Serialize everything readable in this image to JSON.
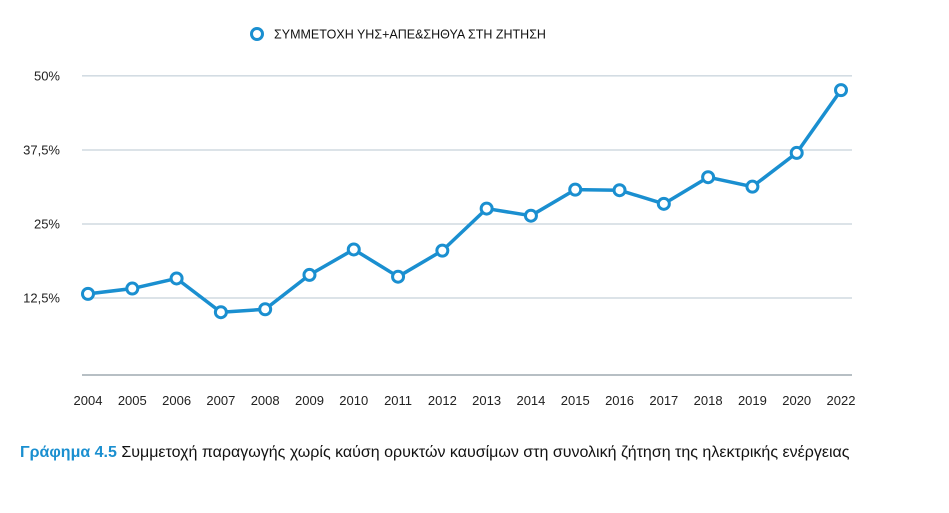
{
  "chart_data": {
    "type": "line",
    "categories": [
      "2004",
      "2005",
      "2006",
      "2007",
      "2008",
      "2009",
      "2010",
      "2011",
      "2012",
      "2013",
      "2014",
      "2015",
      "2016",
      "2017",
      "2018",
      "2019",
      "2020",
      "2022"
    ],
    "series": [
      {
        "name": "ΣΥΜΜΕΤΟΧΗ ΥΗΣ+ΑΠΕ&ΣΗΘΥΑ ΣΤΗ ΖΗΤΗΣΗ",
        "values": [
          13.2,
          14.1,
          15.8,
          10.1,
          10.6,
          16.4,
          20.7,
          16.1,
          20.5,
          27.6,
          26.4,
          30.8,
          30.7,
          28.4,
          32.9,
          31.3,
          37.0,
          47.6
        ],
        "color": "#1a8fd0"
      }
    ],
    "yticks": [
      "12,5%",
      "25%",
      "37,5%",
      "50%"
    ],
    "ytick_values": [
      12.5,
      25,
      37.5,
      50
    ],
    "ylim": [
      -0.5,
      51
    ],
    "grid": true,
    "legend": "top-center",
    "title": "",
    "xlabel": "",
    "ylabel": ""
  },
  "caption": {
    "label": "Γράφημα 4.5",
    "text": "Συμμετοχή παραγωγής χωρίς καύση ορυκτών καυσίμων στη συνολική ζήτηση της ηλεκτρικής ενέργειας"
  }
}
